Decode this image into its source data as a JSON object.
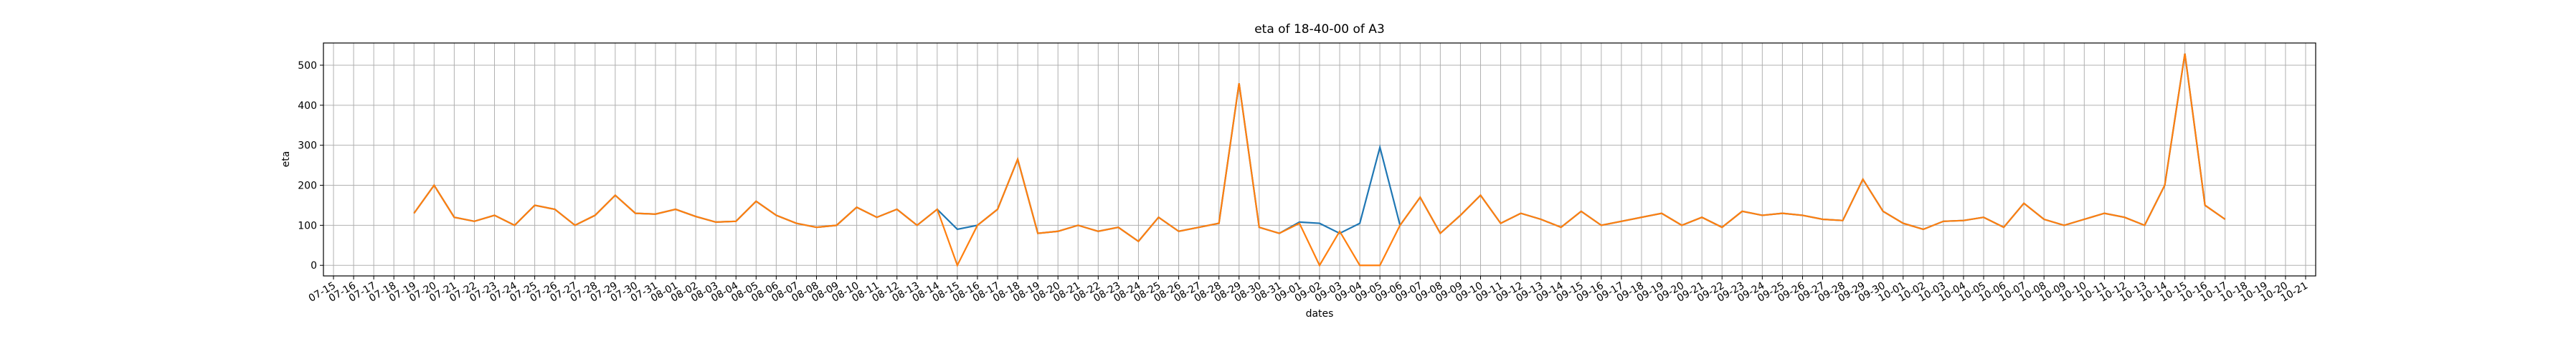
{
  "chart_data": {
    "type": "line",
    "title": "eta of 18-40-00 of A3",
    "x_label": "dates",
    "y_label": "eta",
    "categories": [
      "07-15",
      "07-16",
      "07-17",
      "07-18",
      "07-19",
      "07-20",
      "07-21",
      "07-22",
      "07-23",
      "07-24",
      "07-25",
      "07-26",
      "07-27",
      "07-28",
      "07-29",
      "07-30",
      "07-31",
      "08-01",
      "08-02",
      "08-03",
      "08-04",
      "08-05",
      "08-06",
      "08-07",
      "08-08",
      "08-09",
      "08-10",
      "08-11",
      "08-12",
      "08-13",
      "08-14",
      "08-15",
      "08-16",
      "08-17",
      "08-18",
      "08-19",
      "08-20",
      "08-21",
      "08-22",
      "08-23",
      "08-24",
      "08-25",
      "08-26",
      "08-27",
      "08-28",
      "08-29",
      "08-30",
      "08-31",
      "09-01",
      "09-02",
      "09-03",
      "09-04",
      "09-05",
      "09-06",
      "09-07",
      "09-08",
      "09-09",
      "09-10",
      "09-11",
      "09-12",
      "09-13",
      "09-14",
      "09-15",
      "09-16",
      "09-17",
      "09-18",
      "09-19",
      "09-20",
      "09-21",
      "09-22",
      "09-23",
      "09-24",
      "09-25",
      "09-26",
      "09-27",
      "09-28",
      "09-29",
      "09-30",
      "10-01",
      "10-02",
      "10-03",
      "10-04",
      "10-05",
      "10-06",
      "10-07",
      "10-08",
      "10-09",
      "10-10",
      "10-11",
      "10-12",
      "10-13",
      "10-14",
      "10-15",
      "10-16",
      "10-17",
      "10-18",
      "10-19",
      "10-20",
      "10-21"
    ],
    "series": [
      {
        "color": "#1f77b4",
        "values": [
          null,
          null,
          null,
          null,
          130,
          200,
          120,
          110,
          125,
          100,
          150,
          140,
          100,
          125,
          175,
          130,
          128,
          140,
          122,
          108,
          110,
          160,
          125,
          105,
          95,
          100,
          145,
          120,
          140,
          100,
          140,
          90,
          100,
          140,
          265,
          80,
          85,
          100,
          85,
          95,
          60,
          120,
          85,
          95,
          105,
          455,
          95,
          80,
          108,
          105,
          80,
          105,
          295,
          100,
          170,
          80,
          125,
          175,
          105,
          130,
          115,
          95,
          135,
          100,
          110,
          120,
          130,
          100,
          120,
          95,
          135,
          125,
          130,
          125,
          115,
          112,
          215,
          135,
          105,
          90,
          110,
          112,
          120,
          95,
          155,
          115,
          100,
          115,
          130,
          120,
          100,
          200,
          529,
          150,
          115,
          null,
          null,
          null,
          null
        ]
      },
      {
        "color": "#ff7f0e",
        "values": [
          null,
          null,
          null,
          null,
          130,
          200,
          120,
          110,
          125,
          100,
          150,
          140,
          100,
          125,
          175,
          130,
          128,
          140,
          122,
          108,
          110,
          160,
          125,
          105,
          95,
          100,
          145,
          120,
          140,
          100,
          140,
          0,
          100,
          140,
          265,
          80,
          85,
          100,
          85,
          95,
          60,
          120,
          85,
          95,
          105,
          455,
          95,
          80,
          105,
          0,
          85,
          0,
          0,
          100,
          170,
          80,
          125,
          175,
          105,
          130,
          115,
          95,
          135,
          100,
          110,
          120,
          130,
          100,
          120,
          95,
          135,
          125,
          130,
          125,
          115,
          112,
          215,
          135,
          105,
          90,
          110,
          112,
          120,
          95,
          155,
          115,
          100,
          115,
          130,
          120,
          100,
          200,
          529,
          150,
          115,
          null,
          null,
          null,
          null
        ]
      }
    ],
    "ylim": [
      -26.45,
      555.45
    ],
    "yticks": [
      0,
      100,
      200,
      300,
      400,
      500
    ],
    "grid": true
  }
}
